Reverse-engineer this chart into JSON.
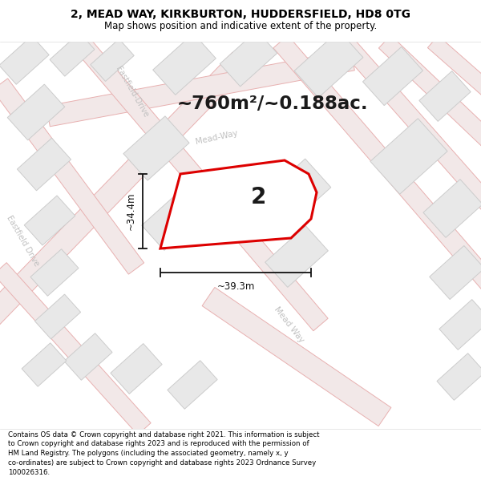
{
  "title_line1": "2, MEAD WAY, KIRKBURTON, HUDDERSFIELD, HD8 0TG",
  "title_line2": "Map shows position and indicative extent of the property.",
  "footer_text": "Contains OS data © Crown copyright and database right 2021. This information is subject to Crown copyright and database rights 2023 and is reproduced with the permission of HM Land Registry. The polygons (including the associated geometry, namely x, y co-ordinates) are subject to Crown copyright and database rights 2023 Ordnance Survey 100026316.",
  "area_text": "~760m²/~0.188ac.",
  "label_number": "2",
  "dim_width": "~39.3m",
  "dim_height": "~34.4m",
  "map_bg": "#f9f9f9",
  "road_fill": "#f2e8e8",
  "road_line": "#e8b0b0",
  "road_line_thin": "#e8b0b0",
  "block_fill": "#e8e8e8",
  "block_outline": "#cccccc",
  "plot_fill": "#ffffff",
  "plot_outline": "#dd0000",
  "dim_color": "#111111",
  "title_color": "#000000",
  "footer_color": "#000000",
  "street_label_color": "#c0c0c0"
}
